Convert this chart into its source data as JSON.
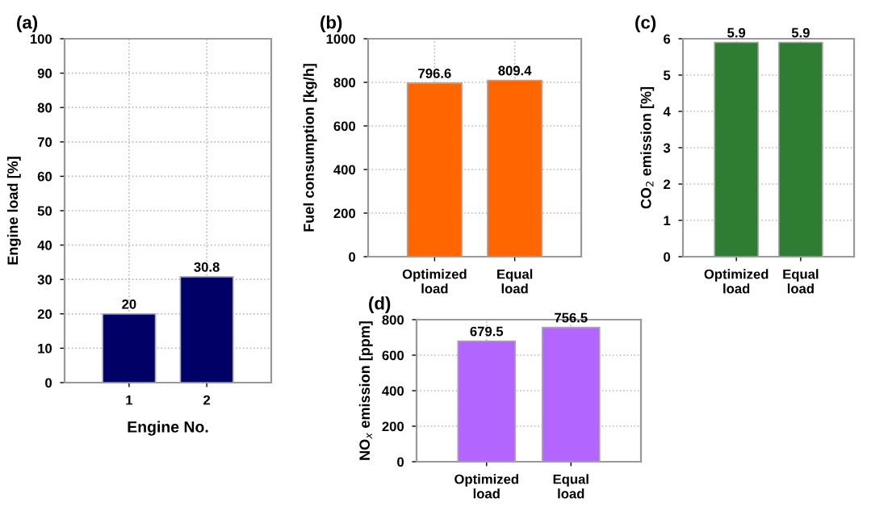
{
  "chart_data": [
    {
      "type": "bar",
      "title": "(a)",
      "xlabel": "Engine No.",
      "ylabel": "Engine load [%]",
      "categories": [
        "1",
        "2"
      ],
      "values": [
        20,
        30.8
      ],
      "color": "#000066",
      "ylim": [
        0,
        100
      ],
      "yticks": [
        0,
        10,
        20,
        30,
        40,
        50,
        60,
        70,
        80,
        90,
        100
      ],
      "grid": true,
      "data_labels": true
    },
    {
      "type": "bar",
      "title": "(b)",
      "ylabel": "Fuel consumption [kg/h]",
      "categories": [
        "Optimized\nload",
        "Equal\nload"
      ],
      "values": [
        796.6,
        809.4
      ],
      "color": "#ff6600",
      "ylim": [
        0,
        1000
      ],
      "yticks": [
        0,
        200,
        400,
        600,
        800,
        1000
      ],
      "grid": true,
      "data_labels": true
    },
    {
      "type": "bar",
      "title": "(c)",
      "ylabel": "CO$_{2}$ emission [%]",
      "categories": [
        "Optimized\nload",
        "Equal\nload"
      ],
      "values": [
        5.9,
        5.9
      ],
      "color": "#2e7d32",
      "ylim": [
        0,
        6
      ],
      "yticks": [
        0,
        1,
        2,
        3,
        4,
        5,
        6
      ],
      "grid": true,
      "data_labels": true
    },
    {
      "type": "bar",
      "title": "(d)",
      "ylabel": "NO$_{x}$ emission [ppm]",
      "categories": [
        "Optimized\nload",
        "Equal\nload"
      ],
      "values": [
        679.5,
        756.5
      ],
      "color": "#b366ff",
      "ylim": [
        0,
        800
      ],
      "yticks": [
        0,
        200,
        400,
        600,
        800
      ],
      "grid": true,
      "data_labels": true
    }
  ]
}
